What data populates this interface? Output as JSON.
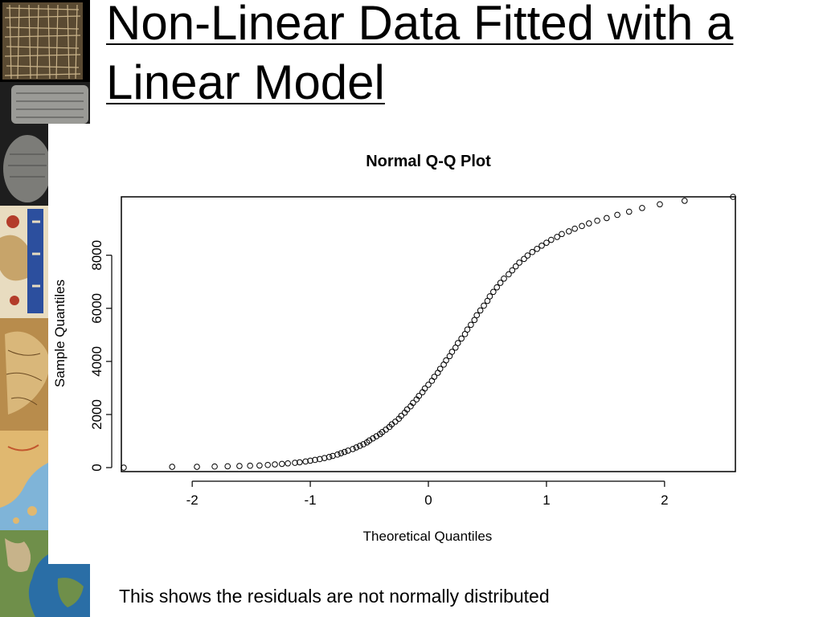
{
  "slide": {
    "title": "Non-Linear Data Fitted with a Linear Model",
    "caption": "This shows the residuals are not normally distributed"
  },
  "decor": {
    "tiles": [
      "grid-map-image",
      "clay-tablet-image",
      "babylonian-map-image",
      "medieval-map-image",
      "old-map-image",
      "greece-map-image",
      "world-map-image"
    ]
  },
  "chart_data": {
    "type": "scatter",
    "title": "Normal Q-Q Plot",
    "xlabel": "Theoretical Quantiles",
    "ylabel": "Sample Quantiles",
    "xlim": [
      -2.6,
      2.6
    ],
    "ylim": [
      -150,
      10200
    ],
    "xticks": [
      -2,
      -1,
      0,
      1,
      2
    ],
    "yticks": [
      0,
      2000,
      4000,
      6000,
      8000
    ],
    "marker": "open-circle",
    "grid": false,
    "color": "#000000",
    "points_x": [
      -2.58,
      -2.17,
      -1.96,
      -1.81,
      -1.7,
      -1.6,
      -1.51,
      -1.43,
      -1.36,
      -1.3,
      -1.24,
      -1.19,
      -1.13,
      -1.09,
      -1.04,
      -1.0,
      -0.96,
      -0.92,
      -0.88,
      -0.84,
      -0.81,
      -0.77,
      -0.74,
      -0.71,
      -0.68,
      -0.64,
      -0.61,
      -0.58,
      -0.55,
      -0.52,
      -0.5,
      -0.47,
      -0.44,
      -0.41,
      -0.39,
      -0.36,
      -0.33,
      -0.31,
      -0.28,
      -0.25,
      -0.23,
      -0.2,
      -0.18,
      -0.15,
      -0.13,
      -0.1,
      -0.08,
      -0.05,
      -0.03,
      0.0,
      0.03,
      0.05,
      0.08,
      0.1,
      0.13,
      0.15,
      0.18,
      0.2,
      0.23,
      0.25,
      0.28,
      0.31,
      0.33,
      0.36,
      0.39,
      0.41,
      0.44,
      0.47,
      0.5,
      0.52,
      0.55,
      0.58,
      0.61,
      0.64,
      0.68,
      0.71,
      0.74,
      0.77,
      0.81,
      0.84,
      0.88,
      0.92,
      0.96,
      1.0,
      1.04,
      1.09,
      1.13,
      1.19,
      1.24,
      1.3,
      1.36,
      1.43,
      1.51,
      1.6,
      1.7,
      1.81,
      1.96,
      2.17,
      2.58
    ],
    "points_y": [
      0,
      30,
      30,
      40,
      50,
      60,
      70,
      80,
      100,
      120,
      140,
      160,
      180,
      200,
      230,
      260,
      290,
      320,
      360,
      400,
      440,
      490,
      540,
      590,
      640,
      700,
      760,
      820,
      880,
      950,
      1020,
      1100,
      1180,
      1260,
      1340,
      1430,
      1530,
      1630,
      1730,
      1840,
      1950,
      2070,
      2190,
      2310,
      2440,
      2570,
      2700,
      2840,
      2980,
      3120,
      3270,
      3420,
      3570,
      3720,
      3880,
      4040,
      4200,
      4360,
      4520,
      4690,
      4860,
      5030,
      5200,
      5380,
      5560,
      5740,
      5920,
      6100,
      6280,
      6450,
      6620,
      6790,
      6960,
      7120,
      7280,
      7430,
      7580,
      7720,
      7860,
      7990,
      8120,
      8240,
      8360,
      8470,
      8580,
      8690,
      8800,
      8900,
      9000,
      9100,
      9200,
      9300,
      9400,
      9520,
      9640,
      9780,
      9920,
      10050,
      10200
    ]
  }
}
